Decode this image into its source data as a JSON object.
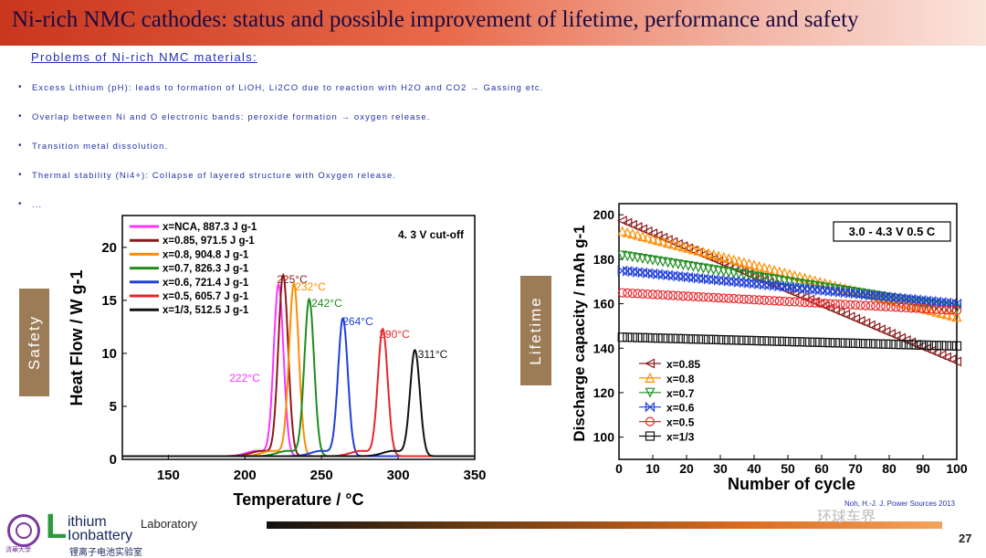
{
  "title": "Ni-rich NMC cathodes: status and possible improvement of lifetime, performance and safety",
  "subheading": "Problems of Ni-rich NMC materials:",
  "bullets": [
    "Excess Lithium (pH): leads to formation of LiOH, Li2CO due to reaction with H2O and CO2 → Gassing etc.",
    "Overlap between Ni and O electronic bands: peroxide formation → oxygen release.",
    "Transition metal dissolution.",
    "Thermal stability (Ni4+): Collapse of layered structure with Oxygen release.",
    "..."
  ],
  "bullet_symbol": "•",
  "side_labels": {
    "safety": "Safety",
    "lifetime": "Lifetime"
  },
  "page_number": "27",
  "watermark": "环球车界",
  "reference": "Noh, H.-J. J. Power Sources 2013",
  "logo": {
    "L": "L",
    "ithium": "ithium",
    "laboratory": "Laboratory",
    "onbattery": "Ionbattery",
    "chinese": "锂离子电池实验室",
    "tsinghua": "清華大學"
  },
  "colors": {
    "title_bar": "#c9361e",
    "text_blue": "#2233aa",
    "side_tab": "#9c7b57",
    "nca": "#ff33ff",
    "x085": "#8b1a1a",
    "x08": "#ff8c00",
    "x07": "#1e8c1e",
    "x06": "#1f3fd8",
    "x05": "#e8252a",
    "x13": "#111111"
  },
  "chart_data": [
    {
      "type": "line",
      "title": "4. 3 V cut-off",
      "xlabel": "Temperature / °C",
      "ylabel": "Heat Flow / W g-1",
      "xlim": [
        120,
        350
      ],
      "ylim": [
        0,
        23
      ],
      "xticks": [
        150,
        200,
        250,
        300,
        350
      ],
      "yticks": [
        0,
        5,
        10,
        15,
        20
      ],
      "legend_position": "top-left",
      "series": [
        {
          "name": "x=NCA, 887.3 J g-1",
          "color_key": "nca",
          "peak_x": 222,
          "peak_y": 16.2,
          "annotation": "222°C"
        },
        {
          "name": "x=0.85, 971.5 J g-1",
          "color_key": "x085",
          "peak_x": 225,
          "peak_y": 17.1,
          "annotation": "225°C"
        },
        {
          "name": "x=0.8, 904.8 J g-1",
          "color_key": "x08",
          "peak_x": 232,
          "peak_y": 16.3,
          "annotation": "232°C"
        },
        {
          "name": "x=0.7, 826.3 J g-1",
          "color_key": "x07",
          "peak_x": 242,
          "peak_y": 14.8,
          "annotation": "242°C"
        },
        {
          "name": "x=0.6, 721.4 J g-1",
          "color_key": "x06",
          "peak_x": 264,
          "peak_y": 13.0,
          "annotation": "264°C"
        },
        {
          "name": "x=0.5, 605.7 J g-1",
          "color_key": "x05",
          "peak_x": 290,
          "peak_y": 12.0,
          "annotation": "290°C"
        },
        {
          "name": "x=1/3, 512.5 J g-1",
          "color_key": "x13",
          "peak_x": 311,
          "peak_y": 10.0,
          "annotation": "311°C"
        }
      ]
    },
    {
      "type": "scatter",
      "title": "3.0 - 4.3 V  0.5 C",
      "xlabel": "Number of cycle",
      "ylabel": "Discharge capacity / mAh g-1",
      "xlim": [
        0,
        100
      ],
      "ylim": [
        90,
        205
      ],
      "xticks": [
        0,
        10,
        20,
        30,
        40,
        50,
        60,
        70,
        80,
        90,
        100
      ],
      "yticks": [
        100,
        120,
        140,
        160,
        180,
        200
      ],
      "legend_position": "bottom-left",
      "series": [
        {
          "name": "x=0.85",
          "color_key": "x085",
          "marker": "triangle-left",
          "start": 198,
          "end": 134
        },
        {
          "name": "x=0.8",
          "color_key": "x08",
          "marker": "triangle-up",
          "start": 193,
          "end": 154
        },
        {
          "name": "x=0.7",
          "color_key": "x07",
          "marker": "triangle-down",
          "start": 182,
          "end": 158
        },
        {
          "name": "x=0.6",
          "color_key": "x06",
          "marker": "bowtie",
          "start": 175,
          "end": 160
        },
        {
          "name": "x=0.5",
          "color_key": "x05",
          "marker": "circle",
          "start": 165,
          "end": 157
        },
        {
          "name": "x=1/3",
          "color_key": "x13",
          "marker": "square",
          "start": 145,
          "end": 141
        }
      ]
    }
  ]
}
